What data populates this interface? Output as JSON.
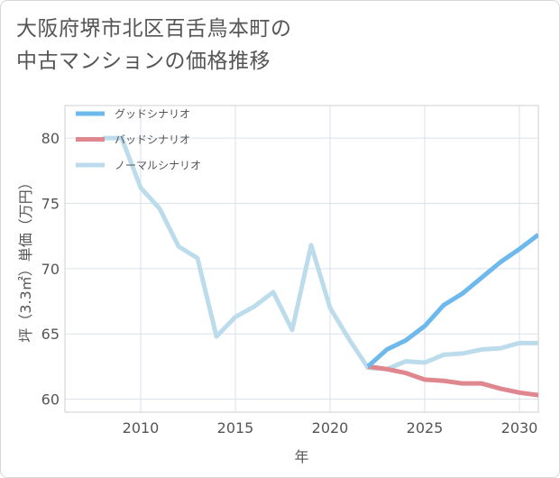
{
  "title_lines": [
    "大阪府堺市北区百舌鳥本町の",
    "中古マンションの価格推移"
  ],
  "chart_data": {
    "type": "line",
    "title": "大阪府堺市北区百舌鳥本町の中古マンションの価格推移",
    "xlabel": "年",
    "ylabel": "坪（3.3㎡）単価（万円）",
    "xlim": [
      2006,
      2031
    ],
    "ylim": [
      59,
      82.5
    ],
    "xticks": [
      2010,
      2015,
      2020,
      2025,
      2030
    ],
    "yticks": [
      60,
      65,
      70,
      75,
      80
    ],
    "grid": true,
    "legend_position": "top-left",
    "series": [
      {
        "name": "グッドシナリオ",
        "color": "#6db8ec",
        "x": [
          2022,
          2023,
          2024,
          2025,
          2026,
          2027,
          2028,
          2029,
          2030,
          2031
        ],
        "y": [
          62.5,
          63.8,
          64.5,
          65.6,
          67.2,
          68.1,
          69.3,
          70.5,
          71.5,
          72.6
        ]
      },
      {
        "name": "バッドシナリオ",
        "color": "#e0868e",
        "x": [
          2022,
          2023,
          2024,
          2025,
          2026,
          2027,
          2028,
          2029,
          2030,
          2031
        ],
        "y": [
          62.5,
          62.3,
          62.0,
          61.5,
          61.4,
          61.2,
          61.2,
          60.8,
          60.5,
          60.3
        ]
      },
      {
        "name": "ノーマルシナリオ",
        "color": "#bcdcec",
        "x": [
          2008,
          2009,
          2010,
          2011,
          2012,
          2013,
          2014,
          2015,
          2016,
          2017,
          2018,
          2019,
          2020,
          2021,
          2022,
          2023,
          2024,
          2025,
          2026,
          2027,
          2028,
          2029,
          2030,
          2031
        ],
        "y": [
          80.0,
          80.0,
          76.2,
          74.6,
          71.7,
          70.8,
          64.8,
          66.3,
          67.1,
          68.2,
          65.3,
          71.8,
          67.0,
          64.6,
          62.4,
          62.3,
          62.9,
          62.8,
          63.4,
          63.5,
          63.8,
          63.9,
          64.3,
          64.3
        ]
      }
    ]
  }
}
